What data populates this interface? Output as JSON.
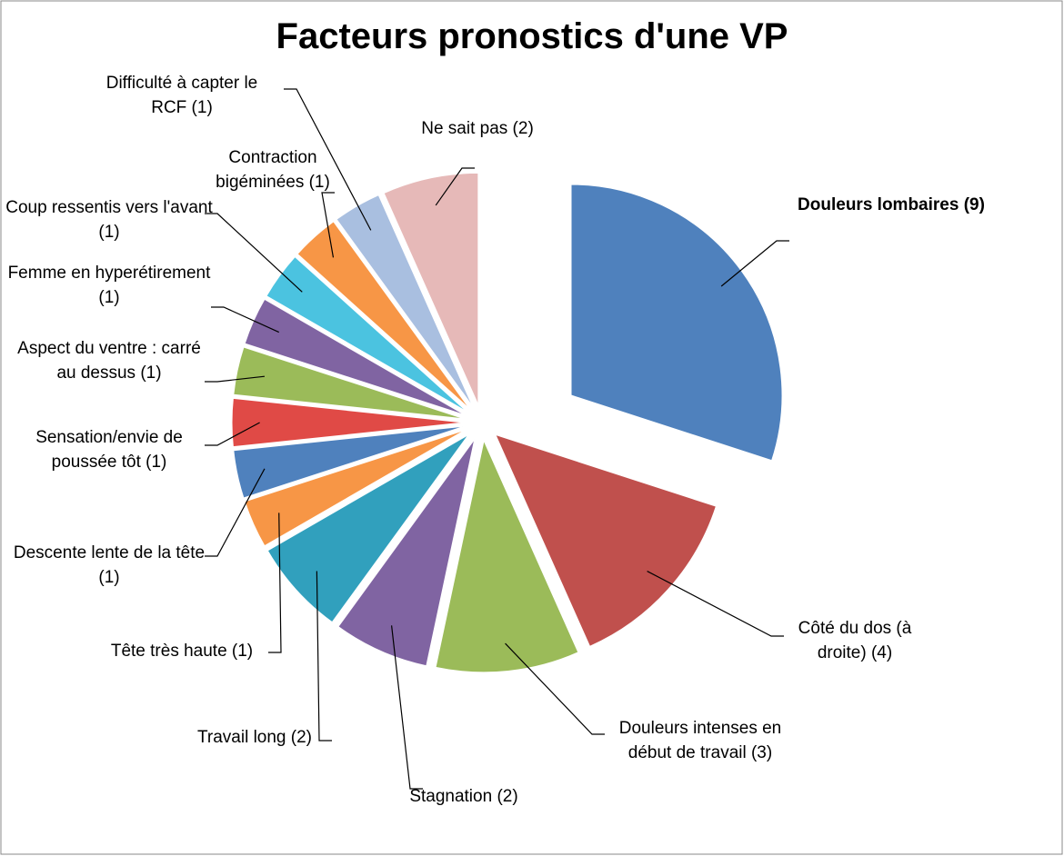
{
  "chart_data": {
    "type": "pie",
    "title": "Facteurs pronostics d'une VP",
    "categories": [
      "Douleurs lombaires (9)",
      "Côté du dos (à droite) (4)",
      "Douleurs intenses en début de travail (3)",
      "Stagnation (2)",
      "Travail long (2)",
      "Tête très haute (1)",
      "Descente lente de la tête (1)",
      "Sensation/envie de poussée tôt (1)",
      "Aspect du ventre : carré au dessus (1)",
      "Femme en hyperétirement (1)",
      "Coup ressentis vers l'avant (1)",
      "Contraction bigéminées (1)",
      "Difficulté à capter le RCF (1)",
      "Ne sait pas (2)"
    ],
    "values": [
      9,
      4,
      3,
      2,
      2,
      1,
      1,
      1,
      1,
      1,
      1,
      1,
      1,
      2
    ],
    "colors": [
      "#4f81bd",
      "#c0504d",
      "#9bbb59",
      "#8064a2",
      "#31a0bd",
      "#f79646",
      "#4f81bd",
      "#e04a46",
      "#9bbb59",
      "#8064a2",
      "#4bc3e0",
      "#f79646",
      "#a9bfe0",
      "#e6b9b8"
    ]
  }
}
